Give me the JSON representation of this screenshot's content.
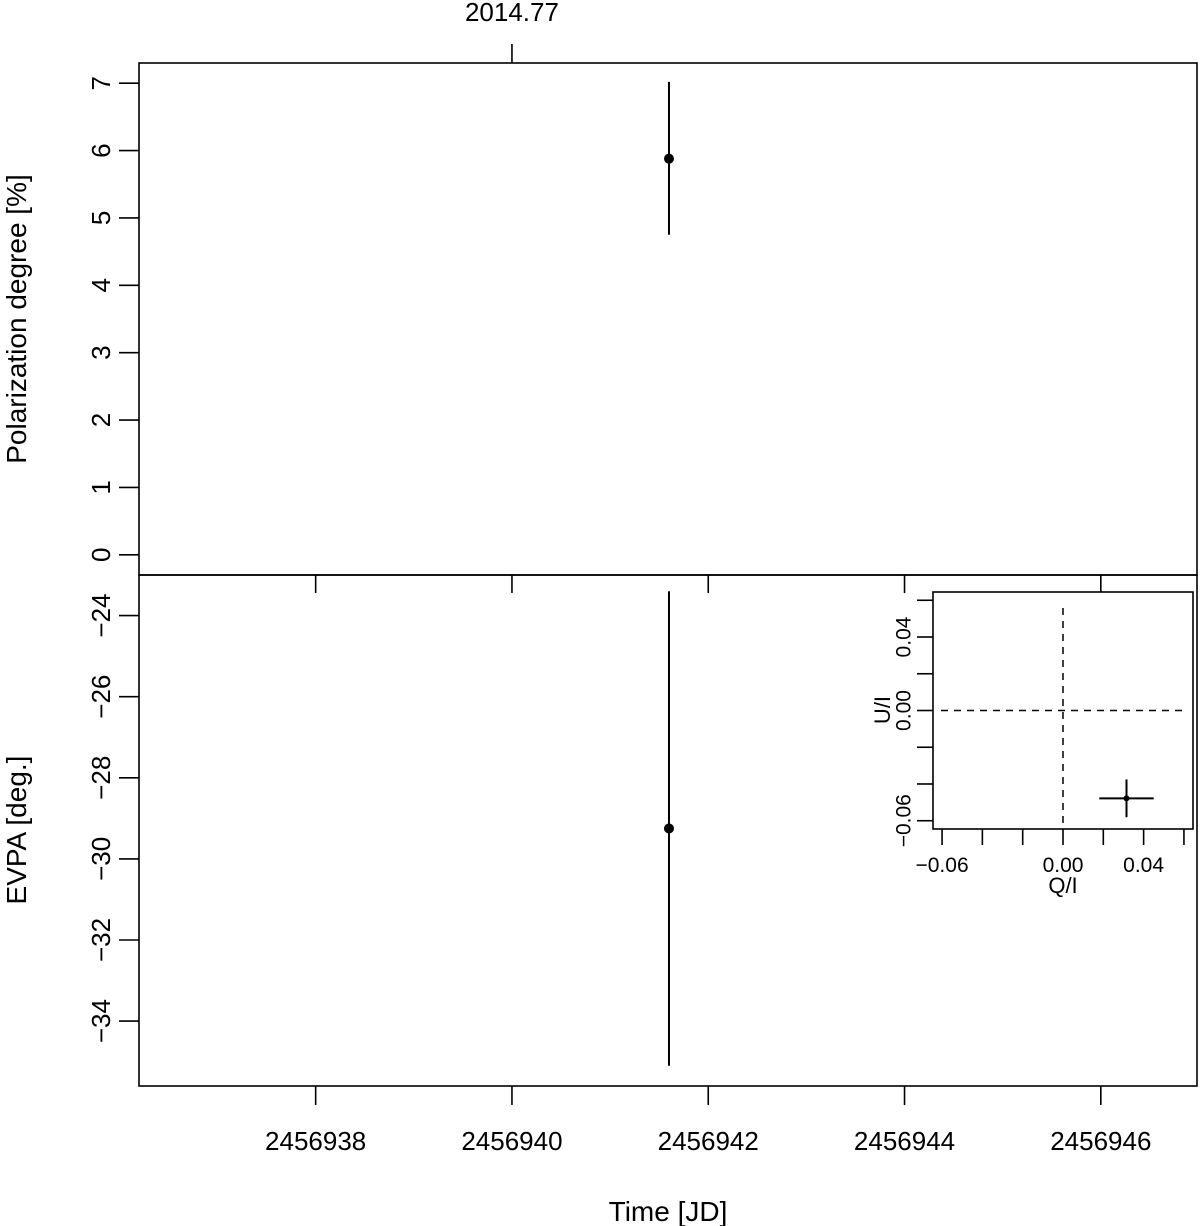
{
  "chart_data": [
    {
      "id": "pd",
      "type": "scatter",
      "ylabel": "Polarization degree [%]",
      "xlim": [
        2456936.2,
        2456946.98
      ],
      "ylim": [
        -0.3,
        7.3
      ],
      "yticks": [
        0,
        1,
        2,
        3,
        4,
        5,
        6,
        7
      ],
      "top_axis": {
        "value": 2456940,
        "label": "2014.77"
      },
      "points": [
        {
          "x": 2456941.6,
          "y": 5.88,
          "yerr_low": 4.75,
          "yerr_high": 7.02
        }
      ]
    },
    {
      "id": "evpa",
      "type": "scatter",
      "xlabel": "Time [JD]",
      "ylabel": "EVPA [deg.]",
      "xlim": [
        2456936.2,
        2456946.98
      ],
      "ylim": [
        -35.6,
        -23.0
      ],
      "xticks": [
        2456938,
        2456940,
        2456942,
        2456944,
        2456946
      ],
      "yticks": [
        -24,
        -26,
        -28,
        -30,
        -32,
        -34
      ],
      "points": [
        {
          "x": 2456941.6,
          "y": -29.25,
          "yerr_low": -35.1,
          "yerr_high": -23.4
        }
      ]
    },
    {
      "id": "qu",
      "type": "scatter",
      "xlabel": "Q/I",
      "ylabel": "U/I",
      "xlim": [
        -0.0645,
        0.0645
      ],
      "ylim": [
        -0.0645,
        0.0645
      ],
      "xticks": [
        -0.06,
        -0.04,
        -0.02,
        0.0,
        0.02,
        0.04,
        0.06
      ],
      "xtick_labels": [
        "−0.06",
        "",
        "",
        "0.00",
        "",
        "0.04",
        ""
      ],
      "yticks": [
        -0.06,
        -0.04,
        -0.02,
        0.0,
        0.02,
        0.04,
        0.06
      ],
      "ytick_labels": [
        "−0.06",
        "",
        "",
        "0.00",
        "",
        "0.04",
        ""
      ],
      "reference_lines": {
        "x": 0,
        "y": 0,
        "style": "dashed"
      },
      "points": [
        {
          "x": 0.0315,
          "y": -0.0478,
          "xerr": 0.0135,
          "yerr": 0.0103
        }
      ]
    }
  ],
  "text": {
    "pd_ylabel": "Polarization degree [%]",
    "evpa_ylabel": "EVPA [deg.]",
    "time_xlabel": "Time [JD]",
    "top_tick_label": "2014.77",
    "inset_xlabel": "Q/I",
    "inset_ylabel": "U/I"
  }
}
